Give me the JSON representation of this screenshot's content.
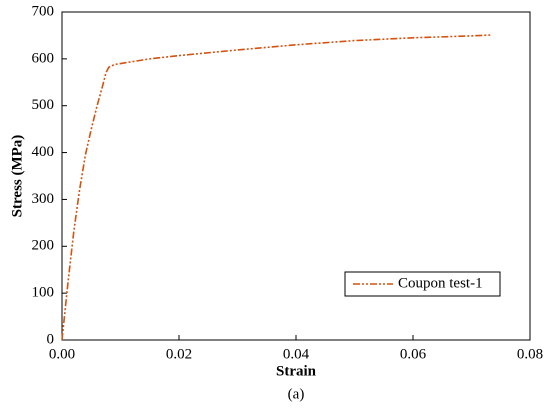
{
  "chart_data": {
    "type": "line",
    "x_label": "Strain",
    "y_label": "Stress (MPa)",
    "caption": "(a)",
    "xlim": [
      0,
      0.08
    ],
    "xticks": [
      {
        "value": 0,
        "label": "0.00"
      },
      {
        "value": 0.02,
        "label": "0.02"
      },
      {
        "value": 0.04,
        "label": "0.04"
      },
      {
        "value": 0.06,
        "label": "0.06"
      },
      {
        "value": 0.08,
        "label": "0.08"
      }
    ],
    "ylim": [
      0,
      700
    ],
    "yticks": [
      0,
      100,
      200,
      300,
      400,
      500,
      600,
      700
    ],
    "legend": "lower right",
    "x": [
      0,
      0.001,
      0.002,
      0.003,
      0.004,
      0.005,
      0.006,
      0.007,
      0.0075,
      0.008,
      0.009,
      0.01,
      0.015,
      0.02,
      0.03,
      0.04,
      0.05,
      0.06,
      0.07,
      0.0735
    ],
    "series": [
      {
        "name": "Coupon test-1",
        "color": "#d4520f",
        "values": [
          0,
          120,
          230,
          320,
          395,
          450,
          500,
          545,
          570,
          582,
          588,
          590,
          600,
          607,
          619,
          630,
          639,
          645,
          649,
          651
        ]
      }
    ]
  }
}
